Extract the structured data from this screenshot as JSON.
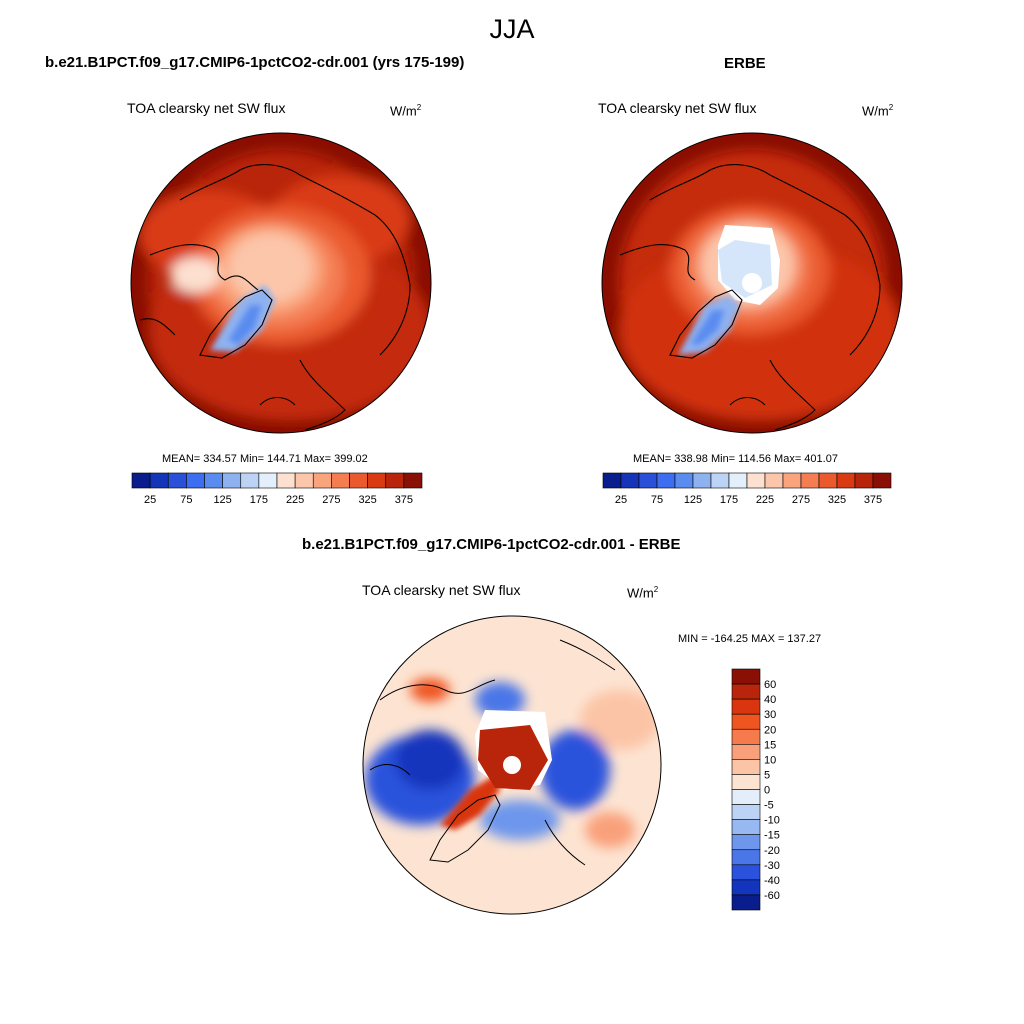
{
  "figure": {
    "title": "JJA",
    "panels": [
      {
        "case_title": "b.e21.B1PCT.f09_g17.CMIP6-1pctCO2-cdr.001 (yrs 175-199)",
        "variable": "TOA clearsky net SW flux",
        "units": "W/m",
        "units_superscript": "2",
        "stats": "MEAN= 334.57  Min= 144.71  Max= 399.02"
      },
      {
        "case_title": "ERBE",
        "variable": "TOA clearsky net SW flux",
        "units": "W/m",
        "units_superscript": "2",
        "stats": "MEAN= 338.98  Min= 114.56  Max= 401.07"
      }
    ],
    "diff_panel": {
      "case_title": "b.e21.B1PCT.f09_g17.CMIP6-1pctCO2-cdr.001 - ERBE",
      "variable": "TOA clearsky net SW flux",
      "units": "W/m",
      "units_superscript": "2",
      "stats": "MIN = -164.25 MAX = 137.27"
    },
    "colorbar_abs": {
      "colors": [
        "#0a1d8c",
        "#1535b8",
        "#2a4fd8",
        "#3d6df0",
        "#5a8cf0",
        "#8eb2f0",
        "#bcd3f5",
        "#e3effa",
        "#fde0d0",
        "#fcc6aa",
        "#f9a47c",
        "#f47d52",
        "#ea5a2e",
        "#d93a12",
        "#b8250a",
        "#8a1005"
      ],
      "labels": [
        "25",
        "75",
        "125",
        "175",
        "225",
        "275",
        "325",
        "375"
      ]
    },
    "colorbar_diff": {
      "colors": [
        "#8a1005",
        "#b8250a",
        "#d9360f",
        "#ef5520",
        "#f57b4c",
        "#f9a07a",
        "#fcc4a6",
        "#fde4d2",
        "#e3eefa",
        "#bcd3f5",
        "#98b8f2",
        "#6d96ec",
        "#4a76e8",
        "#2a52dc",
        "#1335bd",
        "#0a1d8c"
      ],
      "labels": [
        "60",
        "40",
        "30",
        "20",
        "15",
        "10",
        "5",
        "0",
        "-5",
        "-10",
        "-15",
        "-20",
        "-30",
        "-40",
        "-60"
      ]
    }
  },
  "chart_data": {
    "type": "polar-stereographic contour maps (Northern Hemisphere)",
    "season": "JJA",
    "abs_contour_levels": [
      25,
      50,
      75,
      100,
      125,
      150,
      175,
      200,
      225,
      250,
      275,
      300,
      325,
      350,
      375
    ],
    "diff_contour_levels": [
      -60,
      -40,
      -30,
      -20,
      -15,
      -10,
      -5,
      0,
      5,
      10,
      15,
      20,
      30,
      40,
      60
    ],
    "maps": [
      {
        "name": "b.e21.B1PCT.f09_g17.CMIP6-1pctCO2-cdr.001 (yrs 175-199)",
        "mean": 334.57,
        "min": 144.71,
        "max": 399.02
      },
      {
        "name": "ERBE",
        "mean": 338.98,
        "min": 114.56,
        "max": 401.07
      },
      {
        "name": "b.e21.B1PCT.f09_g17.CMIP6-1pctCO2-cdr.001 - ERBE",
        "min": -164.25,
        "max": 137.27
      }
    ]
  }
}
